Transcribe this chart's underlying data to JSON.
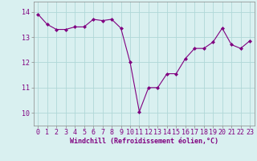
{
  "x": [
    0,
    1,
    2,
    3,
    4,
    5,
    6,
    7,
    8,
    9,
    10,
    11,
    12,
    13,
    14,
    15,
    16,
    17,
    18,
    19,
    20,
    21,
    22,
    23
  ],
  "y": [
    13.9,
    13.5,
    13.3,
    13.3,
    13.4,
    13.4,
    13.7,
    13.65,
    13.7,
    13.35,
    12.0,
    10.05,
    11.0,
    11.0,
    11.55,
    11.55,
    12.15,
    12.55,
    12.55,
    12.8,
    13.35,
    12.7,
    12.55,
    12.85
  ],
  "line_color": "#800080",
  "marker": "D",
  "markersize": 2.0,
  "linewidth": 0.8,
  "bg_color": "#d9f0f0",
  "grid_color": "#b0d8d8",
  "xlabel": "Windchill (Refroidissement éolien,°C)",
  "xlabel_fontsize": 6.0,
  "tick_fontsize": 6.0,
  "yticks": [
    10,
    11,
    12,
    13,
    14
  ],
  "ylim": [
    9.5,
    14.4
  ],
  "xlim": [
    -0.5,
    23.5
  ],
  "xticks": [
    0,
    1,
    2,
    3,
    4,
    5,
    6,
    7,
    8,
    9,
    10,
    11,
    12,
    13,
    14,
    15,
    16,
    17,
    18,
    19,
    20,
    21,
    22,
    23
  ]
}
